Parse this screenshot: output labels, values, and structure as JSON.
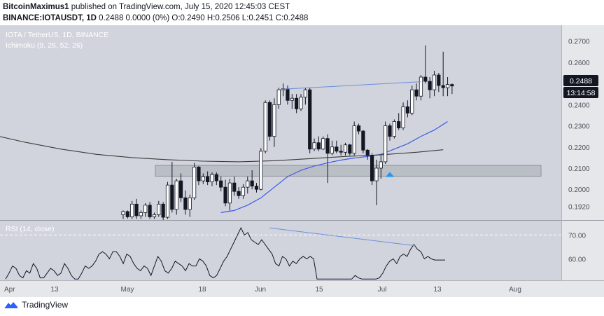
{
  "header": {
    "author": "BitcoinMaximus1",
    "published_text": "published on TradingView.com, July 15, 2020 12:45:03 CEST",
    "symbol": "BINANCE:IOTAUSDT, 1D",
    "quote": "0.2488  0.0000 (0%)  O:0.2490 H:0.2506 L:0.2451 C:0.2488"
  },
  "legend": {
    "symbol_line": "IOTA / TetherUS, 1D, BINANCE",
    "indicator_line": "Ichimoku (9, 26, 52, 26)"
  },
  "rsi_label": "RSI (14, close)",
  "badges": {
    "price": "0.2488",
    "countdown": "13:14:58"
  },
  "footer": {
    "brand": "TradingView"
  },
  "colors": {
    "pane_bg": "#d1d4dc",
    "axis_bg": "#e6e7ea",
    "candle": "#131722",
    "sma_fast": "#3c5ae8",
    "sma_slow": "#3b3b3b",
    "trendline": "#6e8fdc",
    "support_zone": "#a8abb2",
    "marker": "#2196f3"
  },
  "chart_data": {
    "type": "candlestick",
    "price_axis": {
      "ylim": [
        0.1855,
        0.2775
      ],
      "ticks": [
        "0.2700",
        "0.2600",
        "0.2500",
        "0.2400",
        "0.2300",
        "0.2200",
        "0.2100",
        "0.2000",
        "0.1920"
      ]
    },
    "time_axis": {
      "ticks": [
        "Apr",
        "13",
        "May",
        "18",
        "Jun",
        "15",
        "Jul",
        "13",
        "Aug"
      ]
    },
    "last_price": 0.2488,
    "support_zone": [
      0.2062,
      0.2113
    ],
    "candles": [
      [
        0.188,
        0.19,
        0.186,
        0.1895
      ],
      [
        0.1895,
        0.19,
        0.1862,
        0.187
      ],
      [
        0.187,
        0.1945,
        0.186,
        0.193
      ],
      [
        0.193,
        0.1955,
        0.186,
        0.1875
      ],
      [
        0.1875,
        0.19,
        0.186,
        0.189
      ],
      [
        0.189,
        0.1935,
        0.187,
        0.1925
      ],
      [
        0.1925,
        0.194,
        0.186,
        0.187
      ],
      [
        0.187,
        0.189,
        0.186,
        0.188
      ],
      [
        0.188,
        0.1945,
        0.187,
        0.193
      ],
      [
        0.193,
        0.194,
        0.1855,
        0.1868
      ],
      [
        0.1868,
        0.2035,
        0.186,
        0.202
      ],
      [
        0.202,
        0.213,
        0.189,
        0.1905
      ],
      [
        0.1905,
        0.205,
        0.188,
        0.204
      ],
      [
        0.204,
        0.2075,
        0.194,
        0.196
      ],
      [
        0.196,
        0.1995,
        0.188,
        0.1905
      ],
      [
        0.1905,
        0.1975,
        0.187,
        0.196
      ],
      [
        0.196,
        0.2125,
        0.195,
        0.2105
      ],
      [
        0.2105,
        0.211,
        0.202,
        0.204
      ],
      [
        0.204,
        0.2075,
        0.2025,
        0.206
      ],
      [
        0.206,
        0.2085,
        0.202,
        0.2035
      ],
      [
        0.2035,
        0.208,
        0.2015,
        0.207
      ],
      [
        0.207,
        0.208,
        0.202,
        0.204
      ],
      [
        0.204,
        0.206,
        0.199,
        0.201
      ],
      [
        0.201,
        0.2045,
        0.192,
        0.1935
      ],
      [
        0.1935,
        0.205,
        0.19,
        0.203
      ],
      [
        0.203,
        0.206,
        0.197,
        0.199
      ],
      [
        0.199,
        0.201,
        0.1955,
        0.197
      ],
      [
        0.197,
        0.2025,
        0.1955,
        0.201
      ],
      [
        0.201,
        0.206,
        0.198,
        0.204
      ],
      [
        0.204,
        0.209,
        0.2,
        0.2015
      ],
      [
        0.2015,
        0.203,
        0.1985,
        0.2
      ],
      [
        0.2,
        0.2195,
        0.1995,
        0.218
      ],
      [
        0.218,
        0.242,
        0.217,
        0.241
      ],
      [
        0.241,
        0.242,
        0.223,
        0.225
      ],
      [
        0.225,
        0.243,
        0.22,
        0.24
      ],
      [
        0.24,
        0.248,
        0.238,
        0.247
      ],
      [
        0.247,
        0.25,
        0.244,
        0.2475
      ],
      [
        0.2475,
        0.249,
        0.24,
        0.242
      ],
      [
        0.242,
        0.245,
        0.238,
        0.243
      ],
      [
        0.243,
        0.245,
        0.236,
        0.238
      ],
      [
        0.238,
        0.245,
        0.237,
        0.2435
      ],
      [
        0.2435,
        0.248,
        0.24,
        0.247
      ],
      [
        0.247,
        0.248,
        0.217,
        0.219
      ],
      [
        0.219,
        0.224,
        0.218,
        0.222
      ],
      [
        0.222,
        0.225,
        0.218,
        0.219
      ],
      [
        0.219,
        0.225,
        0.2185,
        0.224
      ],
      [
        0.224,
        0.226,
        0.203,
        0.217
      ],
      [
        0.217,
        0.223,
        0.216,
        0.22
      ],
      [
        0.22,
        0.223,
        0.217,
        0.218
      ],
      [
        0.218,
        0.221,
        0.216,
        0.2175
      ],
      [
        0.2175,
        0.222,
        0.216,
        0.221
      ],
      [
        0.221,
        0.2215,
        0.216,
        0.217
      ],
      [
        0.217,
        0.232,
        0.216,
        0.23
      ],
      [
        0.23,
        0.231,
        0.226,
        0.2275
      ],
      [
        0.2275,
        0.228,
        0.217,
        0.2185
      ],
      [
        0.2185,
        0.219,
        0.214,
        0.216
      ],
      [
        0.216,
        0.217,
        0.202,
        0.204
      ],
      [
        0.204,
        0.214,
        0.1925,
        0.21
      ],
      [
        0.21,
        0.216,
        0.205,
        0.213
      ],
      [
        0.213,
        0.232,
        0.212,
        0.23
      ],
      [
        0.23,
        0.231,
        0.223,
        0.225
      ],
      [
        0.225,
        0.233,
        0.224,
        0.232
      ],
      [
        0.232,
        0.236,
        0.228,
        0.229
      ],
      [
        0.229,
        0.241,
        0.228,
        0.239
      ],
      [
        0.239,
        0.242,
        0.234,
        0.236
      ],
      [
        0.236,
        0.249,
        0.235,
        0.247
      ],
      [
        0.247,
        0.25,
        0.242,
        0.244
      ],
      [
        0.244,
        0.254,
        0.242,
        0.253
      ],
      [
        0.253,
        0.268,
        0.25,
        0.251
      ],
      [
        0.251,
        0.253,
        0.243,
        0.247
      ],
      [
        0.247,
        0.256,
        0.244,
        0.254
      ],
      [
        0.254,
        0.255,
        0.246,
        0.249
      ],
      [
        0.249,
        0.265,
        0.244,
        0.248
      ],
      [
        0.248,
        0.253,
        0.244,
        0.2495
      ],
      [
        0.2495,
        0.25,
        0.245,
        0.2488
      ]
    ],
    "sma_fast": [
      [
        0,
        0.189
      ],
      [
        3,
        0.19
      ],
      [
        6,
        0.1925
      ],
      [
        9,
        0.196
      ],
      [
        12,
        0.201
      ],
      [
        15,
        0.206
      ],
      [
        18,
        0.209
      ],
      [
        21,
        0.211
      ],
      [
        24,
        0.2125
      ],
      [
        27,
        0.2138
      ],
      [
        30,
        0.2148
      ],
      [
        33,
        0.2155
      ],
      [
        36,
        0.2165
      ],
      [
        39,
        0.219
      ],
      [
        42,
        0.2215
      ],
      [
        45,
        0.225
      ],
      [
        48,
        0.228
      ],
      [
        51,
        0.232
      ]
    ],
    "sma_slow": [
      [
        -45,
        0.2345
      ],
      [
        -38,
        0.23
      ],
      [
        -30,
        0.226
      ],
      [
        -22,
        0.2222
      ],
      [
        -14,
        0.219
      ],
      [
        -6,
        0.2165
      ],
      [
        2,
        0.215
      ],
      [
        10,
        0.214
      ],
      [
        18,
        0.2133
      ],
      [
        26,
        0.213
      ],
      [
        34,
        0.2135
      ],
      [
        42,
        0.2145
      ],
      [
        50,
        0.2155
      ],
      [
        58,
        0.2163
      ],
      [
        66,
        0.2175
      ],
      [
        72,
        0.2187
      ]
    ],
    "trendline_price": [
      [
        0.2472,
        0.2508
      ]
    ],
    "rsi": {
      "ylim": [
        51,
        76
      ],
      "ticks": [
        "70.00",
        "60.00"
      ],
      "overbought_line": 70,
      "values": [
        51.5,
        54,
        57,
        56,
        53,
        52,
        55,
        54,
        58,
        56,
        52,
        52,
        54,
        56,
        55,
        53,
        54,
        58,
        56,
        53,
        51.5,
        51.5,
        54,
        57,
        56,
        57,
        59,
        62,
        63,
        62,
        60,
        63,
        63,
        61,
        58,
        62,
        61,
        58,
        56,
        55,
        57,
        56,
        53,
        57,
        61,
        59,
        55,
        54,
        56,
        59,
        58,
        57,
        55,
        58,
        57,
        57,
        60,
        59,
        57,
        53,
        52,
        53,
        56,
        59,
        61,
        64,
        67,
        70,
        73,
        70,
        71,
        68,
        67,
        66,
        68,
        66,
        64,
        62,
        58,
        57,
        61,
        60,
        57,
        59,
        58,
        60,
        61,
        60,
        61,
        60,
        51.5,
        51.5,
        51.5,
        51.5,
        51.5,
        51.5,
        51.5,
        51.5,
        51.5,
        51.5,
        51.5,
        53,
        52,
        51.5,
        51.5,
        51.5,
        51.5,
        51.5,
        52,
        54,
        57,
        59,
        60,
        58,
        61,
        62,
        61,
        64,
        66,
        64,
        63,
        60,
        61,
        60,
        59.5,
        59.5,
        59.5,
        59.5
      ],
      "trendline": [
        [
          73,
          65.5
        ]
      ]
    }
  }
}
